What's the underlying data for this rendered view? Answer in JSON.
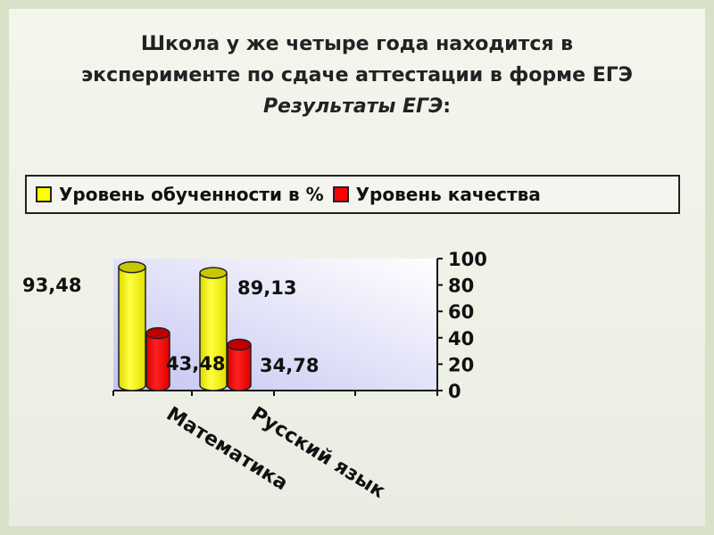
{
  "slide": {
    "title_line1": "Школа у же четыре года находится в",
    "title_line2": "эксперименте по сдаче аттестации в форме ЕГЭ",
    "subtitle": "Результаты ЕГЭ",
    "subtitle_colon": ":"
  },
  "chart_data": {
    "type": "bar",
    "style": "3d-cylinder",
    "categories": [
      "Математика",
      "Русский язык"
    ],
    "series": [
      {
        "name": "Уровень обученности в %",
        "values": [
          93.48,
          89.13
        ],
        "labels": [
          "93,48",
          "89,13"
        ],
        "color": "#ffff00"
      },
      {
        "name": "Уровень качества",
        "values": [
          43.48,
          34.78
        ],
        "labels": [
          "43,48",
          "34,78"
        ],
        "color": "#ff0000"
      }
    ],
    "ylim": [
      0,
      100
    ],
    "yticks": [
      "0",
      "20",
      "40",
      "60",
      "80",
      "100"
    ],
    "yaxis_side": "right",
    "legend_placement": "top",
    "plot_background": "#c8c8f4"
  }
}
